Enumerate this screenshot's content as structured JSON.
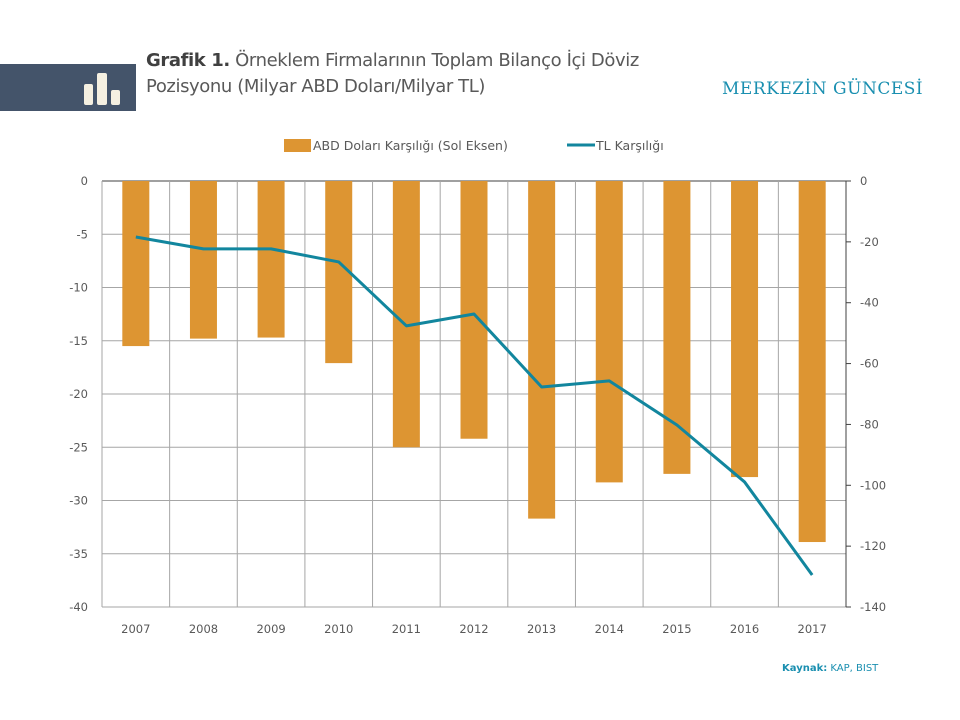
{
  "header": {
    "title_bold": "Grafik 1.",
    "title_line1": " Örneklem Firmalarının  Toplam Bilanço İçi Döviz",
    "title_line2": "Pozisyonu (Milyar ABD Doları/Milyar TL)",
    "brand": "MERKEZİN GÜNCESİ",
    "icon": "bar-chart-icon"
  },
  "footer": {
    "source_label": "Kaynak:",
    "source_value": " KAP, BIST"
  },
  "colors": {
    "bar": "#dd9532",
    "line": "#12869e",
    "banner": "#44546a",
    "brand": "#1a8fb0",
    "grid": "#a6a6a6"
  },
  "chart_data": {
    "type": "bar",
    "title": "Örneklem Firmalarının Toplam Bilanço İçi Döviz Pozisyonu (Milyar ABD Doları/Milyar TL)",
    "categories": [
      "2007",
      "2008",
      "2009",
      "2010",
      "2011",
      "2012",
      "2013",
      "2014",
      "2015",
      "2016",
      "2017"
    ],
    "series": [
      {
        "name": "ABD Doları Karşılığı (Sol Eksen)",
        "type": "bar",
        "axis": "left",
        "values": [
          -15.5,
          -14.8,
          -14.7,
          -17.1,
          -25.0,
          -24.2,
          -31.7,
          -28.3,
          -27.5,
          -27.8,
          -33.9
        ]
      },
      {
        "name": "TL Karşılığı",
        "type": "line",
        "axis": "right",
        "values": [
          -18.4,
          -22.3,
          -22.3,
          -26.6,
          -47.6,
          -43.7,
          -67.7,
          -65.7,
          -80.2,
          -98.9,
          -129.5
        ]
      }
    ],
    "left_axis": {
      "min": -40,
      "max": 0,
      "ticks": [
        "0",
        "-5",
        "-10",
        "-15",
        "-20",
        "-25",
        "-30",
        "-35",
        "-40"
      ]
    },
    "right_axis": {
      "min": -140,
      "max": 0,
      "ticks": [
        "0",
        "-20",
        "-40",
        "-60",
        "-80",
        "-100",
        "-120",
        "-140"
      ]
    },
    "xlabel": "",
    "ylabel": "",
    "legend_position": "top-center",
    "grid": true
  }
}
